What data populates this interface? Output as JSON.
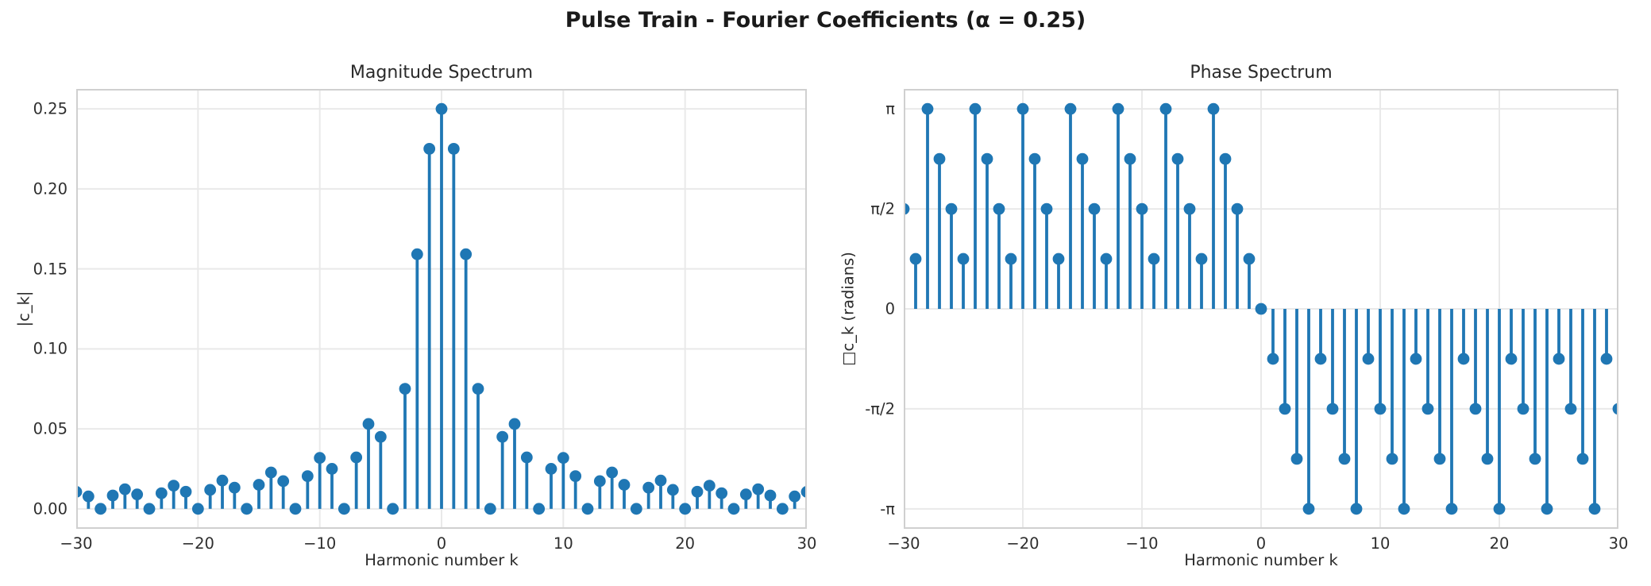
{
  "figure": {
    "title": "Pulse Train - Fourier Coefficients (α = 0.25)",
    "colors": {
      "stem": "#1f77b4",
      "grid": "#e9e9e9",
      "spine": "#d0d0d0",
      "text": "#2a2a2a"
    }
  },
  "chart_data": [
    {
      "type": "stem",
      "title": "Magnitude Spectrum",
      "xlabel": "Harmonic number k",
      "ylabel": "|c_k|",
      "grid": true,
      "legend": null,
      "xlim": [
        -30,
        30
      ],
      "ylim": [
        -0.0125,
        0.2625
      ],
      "xticks": [
        -30,
        -20,
        -10,
        0,
        10,
        20,
        30
      ],
      "xtick_labels": [
        "−30",
        "−20",
        "−10",
        "0",
        "10",
        "20",
        "30"
      ],
      "yticks": [
        0.0,
        0.05,
        0.1,
        0.15,
        0.2,
        0.25
      ],
      "ytick_labels": [
        "0.00",
        "0.05",
        "0.10",
        "0.15",
        "0.20",
        "0.25"
      ],
      "x": [
        -30,
        -29,
        -28,
        -27,
        -26,
        -25,
        -24,
        -23,
        -22,
        -21,
        -20,
        -19,
        -18,
        -17,
        -16,
        -15,
        -14,
        -13,
        -12,
        -11,
        -10,
        -9,
        -8,
        -7,
        -6,
        -5,
        -4,
        -3,
        -2,
        -1,
        0,
        1,
        2,
        3,
        4,
        5,
        6,
        7,
        8,
        9,
        10,
        11,
        12,
        13,
        14,
        15,
        16,
        17,
        18,
        19,
        20,
        21,
        22,
        23,
        24,
        25,
        26,
        27,
        28,
        29,
        30
      ],
      "values": [
        0.01061,
        0.00776,
        0.0,
        0.00834,
        0.01224,
        0.009,
        0.0,
        0.00979,
        0.01447,
        0.01072,
        0.0,
        0.01185,
        0.01768,
        0.01324,
        0.0,
        0.01501,
        0.02274,
        0.01731,
        0.0,
        0.02046,
        0.03183,
        0.02501,
        0.0,
        0.03215,
        0.05305,
        0.04502,
        0.0,
        0.07503,
        0.15915,
        0.22508,
        0.25,
        0.22508,
        0.15915,
        0.07503,
        0.0,
        0.04502,
        0.05305,
        0.03215,
        0.0,
        0.02501,
        0.03183,
        0.02046,
        0.0,
        0.01731,
        0.02274,
        0.01501,
        0.0,
        0.01324,
        0.01768,
        0.01185,
        0.0,
        0.01072,
        0.01447,
        0.00979,
        0.0,
        0.009,
        0.01224,
        0.00834,
        0.0,
        0.00776,
        0.01061
      ]
    },
    {
      "type": "stem",
      "title": "Phase Spectrum",
      "xlabel": "Harmonic number k",
      "ylabel": "□c_k (radians)",
      "grid": true,
      "legend": null,
      "xlim": [
        -30,
        30
      ],
      "ylim": [
        -3.4558,
        3.4558
      ],
      "xticks": [
        -30,
        -20,
        -10,
        0,
        10,
        20,
        30
      ],
      "xtick_labels": [
        "−30",
        "−20",
        "−10",
        "0",
        "10",
        "20",
        "30"
      ],
      "yticks": [
        3.1416,
        1.5708,
        0.0,
        -1.5708,
        -3.1416
      ],
      "ytick_labels": [
        "π",
        "π/2",
        "0",
        "-π/2",
        "-π"
      ],
      "x": [
        -30,
        -29,
        -28,
        -27,
        -26,
        -25,
        -24,
        -23,
        -22,
        -21,
        -20,
        -19,
        -18,
        -17,
        -16,
        -15,
        -14,
        -13,
        -12,
        -11,
        -10,
        -9,
        -8,
        -7,
        -6,
        -5,
        -4,
        -3,
        -2,
        -1,
        0,
        1,
        2,
        3,
        4,
        5,
        6,
        7,
        8,
        9,
        10,
        11,
        12,
        13,
        14,
        15,
        16,
        17,
        18,
        19,
        20,
        21,
        22,
        23,
        24,
        25,
        26,
        27,
        28,
        29,
        30
      ],
      "values": [
        1.5708,
        0.7854,
        3.1416,
        2.3562,
        1.5708,
        0.7854,
        3.1416,
        2.3562,
        1.5708,
        0.7854,
        3.1416,
        2.3562,
        1.5708,
        0.7854,
        3.1416,
        2.3562,
        1.5708,
        0.7854,
        3.1416,
        2.3562,
        1.5708,
        0.7854,
        3.1416,
        2.3562,
        1.5708,
        0.7854,
        3.1416,
        2.3562,
        1.5708,
        0.7854,
        0.0,
        -0.7854,
        -1.5708,
        -2.3562,
        -3.1416,
        -0.7854,
        -1.5708,
        -2.3562,
        -3.1416,
        -0.7854,
        -1.5708,
        -2.3562,
        -3.1416,
        -0.7854,
        -1.5708,
        -2.3562,
        -3.1416,
        -0.7854,
        -1.5708,
        -2.3562,
        -3.1416,
        -0.7854,
        -1.5708,
        -2.3562,
        -3.1416,
        -0.7854,
        -1.5708,
        -2.3562,
        -3.1416,
        -0.7854,
        -1.5708
      ]
    }
  ]
}
